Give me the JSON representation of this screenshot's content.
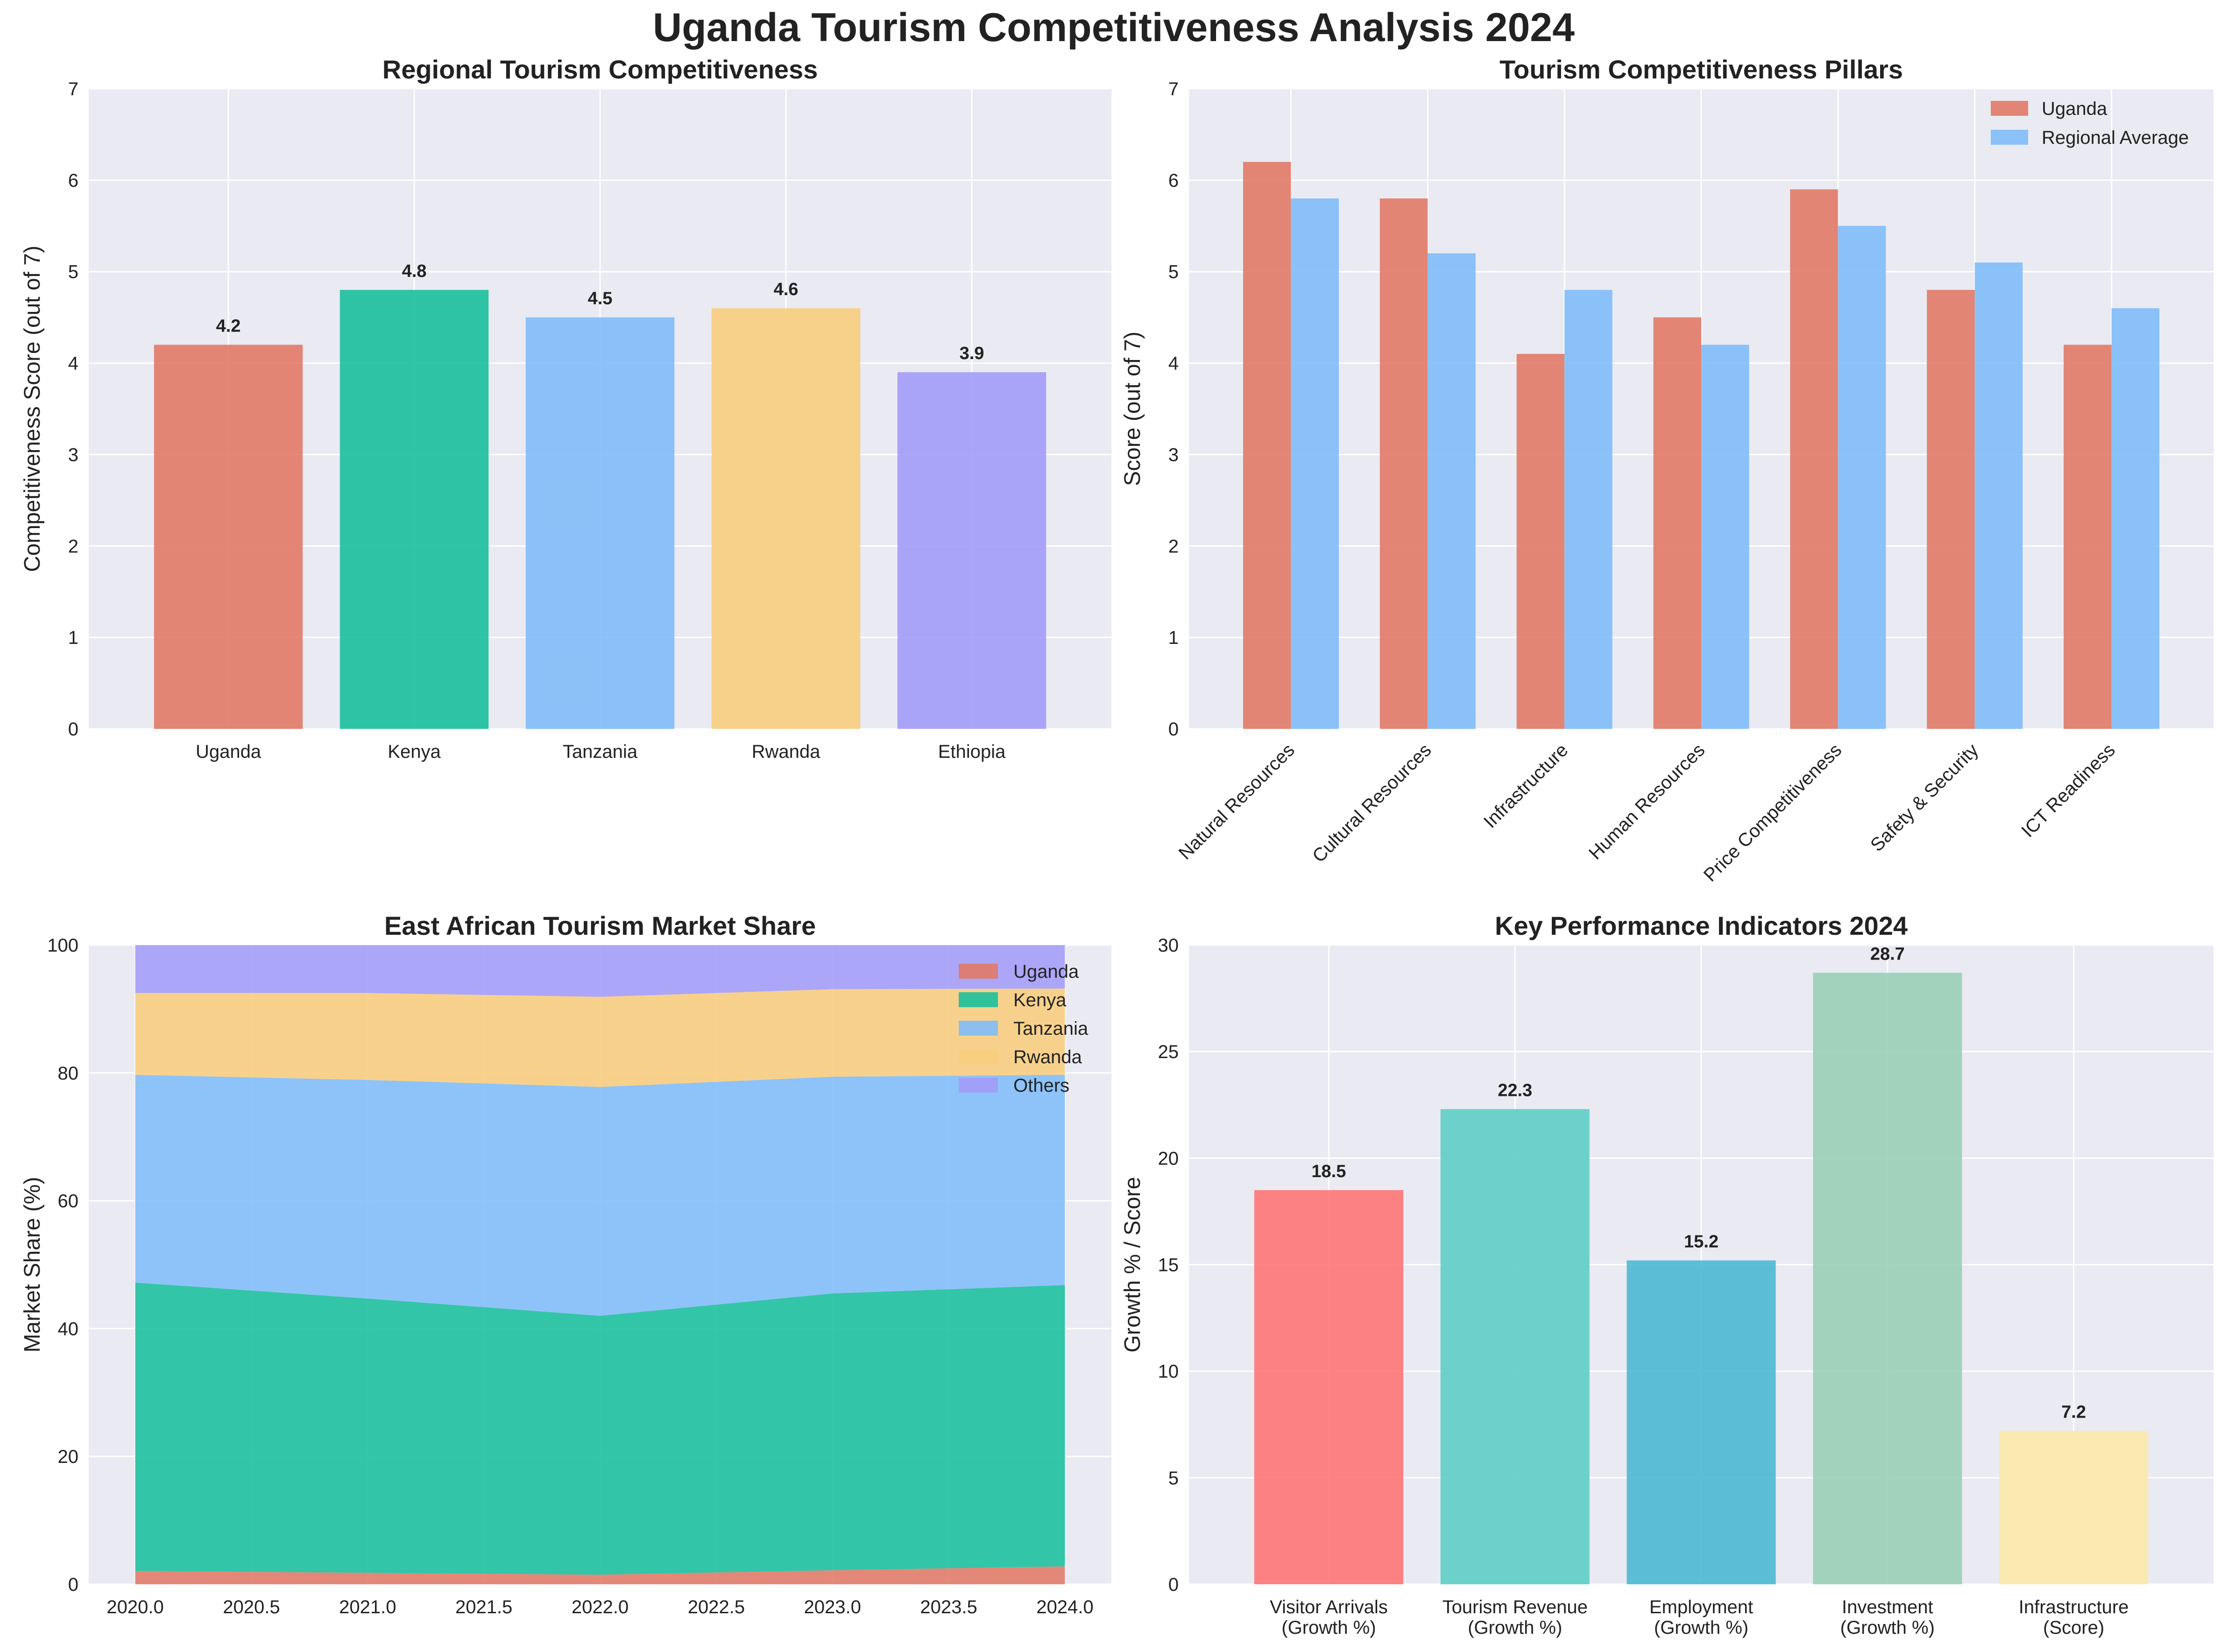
{
  "title": "Uganda Tourism Competitiveness Analysis 2024",
  "chart_data": [
    {
      "id": "regional",
      "type": "bar",
      "title": "Regional Tourism Competitiveness",
      "xlabel": "",
      "ylabel": "Competitiveness Score (out of 7)",
      "categories": [
        "Uganda",
        "Kenya",
        "Tanzania",
        "Rwanda",
        "Ethiopia"
      ],
      "values": [
        4.2,
        4.8,
        4.5,
        4.6,
        3.9
      ],
      "value_labels": [
        "4.2",
        "4.8",
        "4.5",
        "4.6",
        "3.9"
      ],
      "colors": [
        "#e17a66",
        "#19bf9c",
        "#7fbdf8",
        "#f8cd7d",
        "#a39cf8"
      ],
      "ylim": [
        0,
        7
      ],
      "yticks": [
        0,
        1,
        2,
        3,
        4,
        5,
        6,
        7
      ],
      "grid": true
    },
    {
      "id": "pillars",
      "type": "bar",
      "title": "Tourism Competitiveness Pillars",
      "xlabel": "",
      "ylabel": "Score (out of 7)",
      "categories": [
        "Natural Resources",
        "Cultural Resources",
        "Infrastructure",
        "Human Resources",
        "Price Competitiveness",
        "Safety & Security",
        "ICT Readiness"
      ],
      "series": [
        {
          "name": "Uganda",
          "color": "#e17a66",
          "values": [
            6.2,
            5.8,
            4.1,
            4.5,
            5.9,
            4.8,
            4.2
          ]
        },
        {
          "name": "Regional Average",
          "color": "#7fbdf8",
          "values": [
            5.8,
            5.2,
            4.8,
            4.2,
            5.5,
            5.1,
            4.6
          ]
        }
      ],
      "ylim": [
        0,
        7
      ],
      "yticks": [
        0,
        1,
        2,
        3,
        4,
        5,
        6,
        7
      ],
      "legend": "top-right",
      "grid": true
    },
    {
      "id": "market",
      "type": "area",
      "stacked": true,
      "title": "East African Tourism Market Share",
      "xlabel": "",
      "ylabel": "Market Share (%)",
      "x": [
        2020,
        2021,
        2022,
        2023,
        2024
      ],
      "series": [
        {
          "name": "Uganda",
          "color": "#e17a66",
          "values": [
            2.1,
            1.8,
            1.5,
            2.2,
            2.8
          ]
        },
        {
          "name": "Kenya",
          "color": "#19bf9c",
          "values": [
            45.1,
            42.9,
            40.5,
            43.3,
            44.0
          ]
        },
        {
          "name": "Tanzania",
          "color": "#7fbdf8",
          "values": [
            32.5,
            34.2,
            35.8,
            33.9,
            32.9
          ]
        },
        {
          "name": "Rwanda",
          "color": "#f8cd7d",
          "values": [
            12.8,
            13.6,
            14.1,
            13.7,
            13.5
          ]
        },
        {
          "name": "Others",
          "color": "#a39cf8",
          "values": [
            7.5,
            7.5,
            8.1,
            6.9,
            6.8
          ]
        }
      ],
      "xlim": [
        2019.8,
        2024.2
      ],
      "xticks": [
        2020,
        2020.5,
        2021,
        2021.5,
        2022,
        2022.5,
        2023,
        2023.5,
        2024
      ],
      "xtick_labels": [
        "2020.0",
        "2020.5",
        "2021.0",
        "2021.5",
        "2022.0",
        "2022.5",
        "2023.0",
        "2023.5",
        "2024.0"
      ],
      "ylim": [
        0,
        100
      ],
      "yticks": [
        0,
        20,
        40,
        60,
        80,
        100
      ],
      "legend": "top-right",
      "grid": true
    },
    {
      "id": "kpi",
      "type": "bar",
      "title": "Key Performance Indicators 2024",
      "xlabel": "",
      "ylabel": "Growth % / Score",
      "categories": [
        [
          "Visitor Arrivals",
          "(Growth %)"
        ],
        [
          "Tourism Revenue",
          "(Growth %)"
        ],
        [
          "Employment",
          "(Growth %)"
        ],
        [
          "Investment",
          "(Growth %)"
        ],
        [
          "Infrastructure",
          "(Score)"
        ]
      ],
      "values": [
        18.5,
        22.3,
        15.2,
        28.7,
        7.2
      ],
      "value_labels": [
        "18.5",
        "22.3",
        "15.2",
        "28.7",
        "7.2"
      ],
      "colors": [
        "#fe7676",
        "#5ecdc7",
        "#4db8d3",
        "#9acfb6",
        "#fce9a9"
      ],
      "ylim": [
        0,
        30
      ],
      "yticks": [
        0,
        5,
        10,
        15,
        20,
        25,
        30
      ],
      "grid": true
    }
  ]
}
